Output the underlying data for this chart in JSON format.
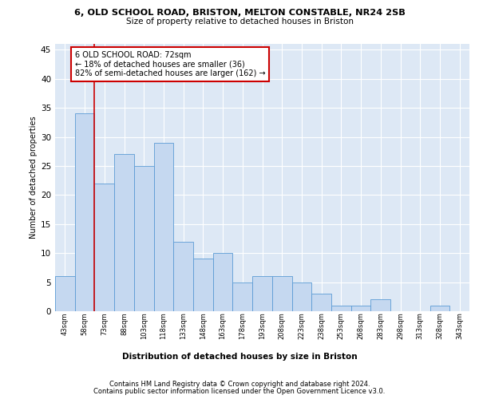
{
  "title1": "6, OLD SCHOOL ROAD, BRISTON, MELTON CONSTABLE, NR24 2SB",
  "title2": "Size of property relative to detached houses in Briston",
  "xlabel": "Distribution of detached houses by size in Briston",
  "ylabel": "Number of detached properties",
  "categories": [
    "43sqm",
    "58sqm",
    "73sqm",
    "88sqm",
    "103sqm",
    "118sqm",
    "133sqm",
    "148sqm",
    "163sqm",
    "178sqm",
    "193sqm",
    "208sqm",
    "223sqm",
    "238sqm",
    "253sqm",
    "268sqm",
    "283sqm",
    "298sqm",
    "313sqm",
    "328sqm",
    "343sqm"
  ],
  "values": [
    6,
    34,
    22,
    27,
    25,
    29,
    12,
    9,
    10,
    5,
    6,
    6,
    5,
    3,
    1,
    1,
    2,
    0,
    0,
    1,
    0
  ],
  "bar_color": "#c5d8f0",
  "bar_edge_color": "#5b9bd5",
  "background_color": "#dde8f5",
  "grid_color": "#ffffff",
  "annotation_text": "6 OLD SCHOOL ROAD: 72sqm\n← 18% of detached houses are smaller (36)\n82% of semi-detached houses are larger (162) →",
  "annotation_box_color": "#ffffff",
  "annotation_box_edge": "#cc0000",
  "redline_x": 1.5,
  "ylim": [
    0,
    46
  ],
  "yticks": [
    0,
    5,
    10,
    15,
    20,
    25,
    30,
    35,
    40,
    45
  ],
  "footer1": "Contains HM Land Registry data © Crown copyright and database right 2024.",
  "footer2": "Contains public sector information licensed under the Open Government Licence v3.0."
}
